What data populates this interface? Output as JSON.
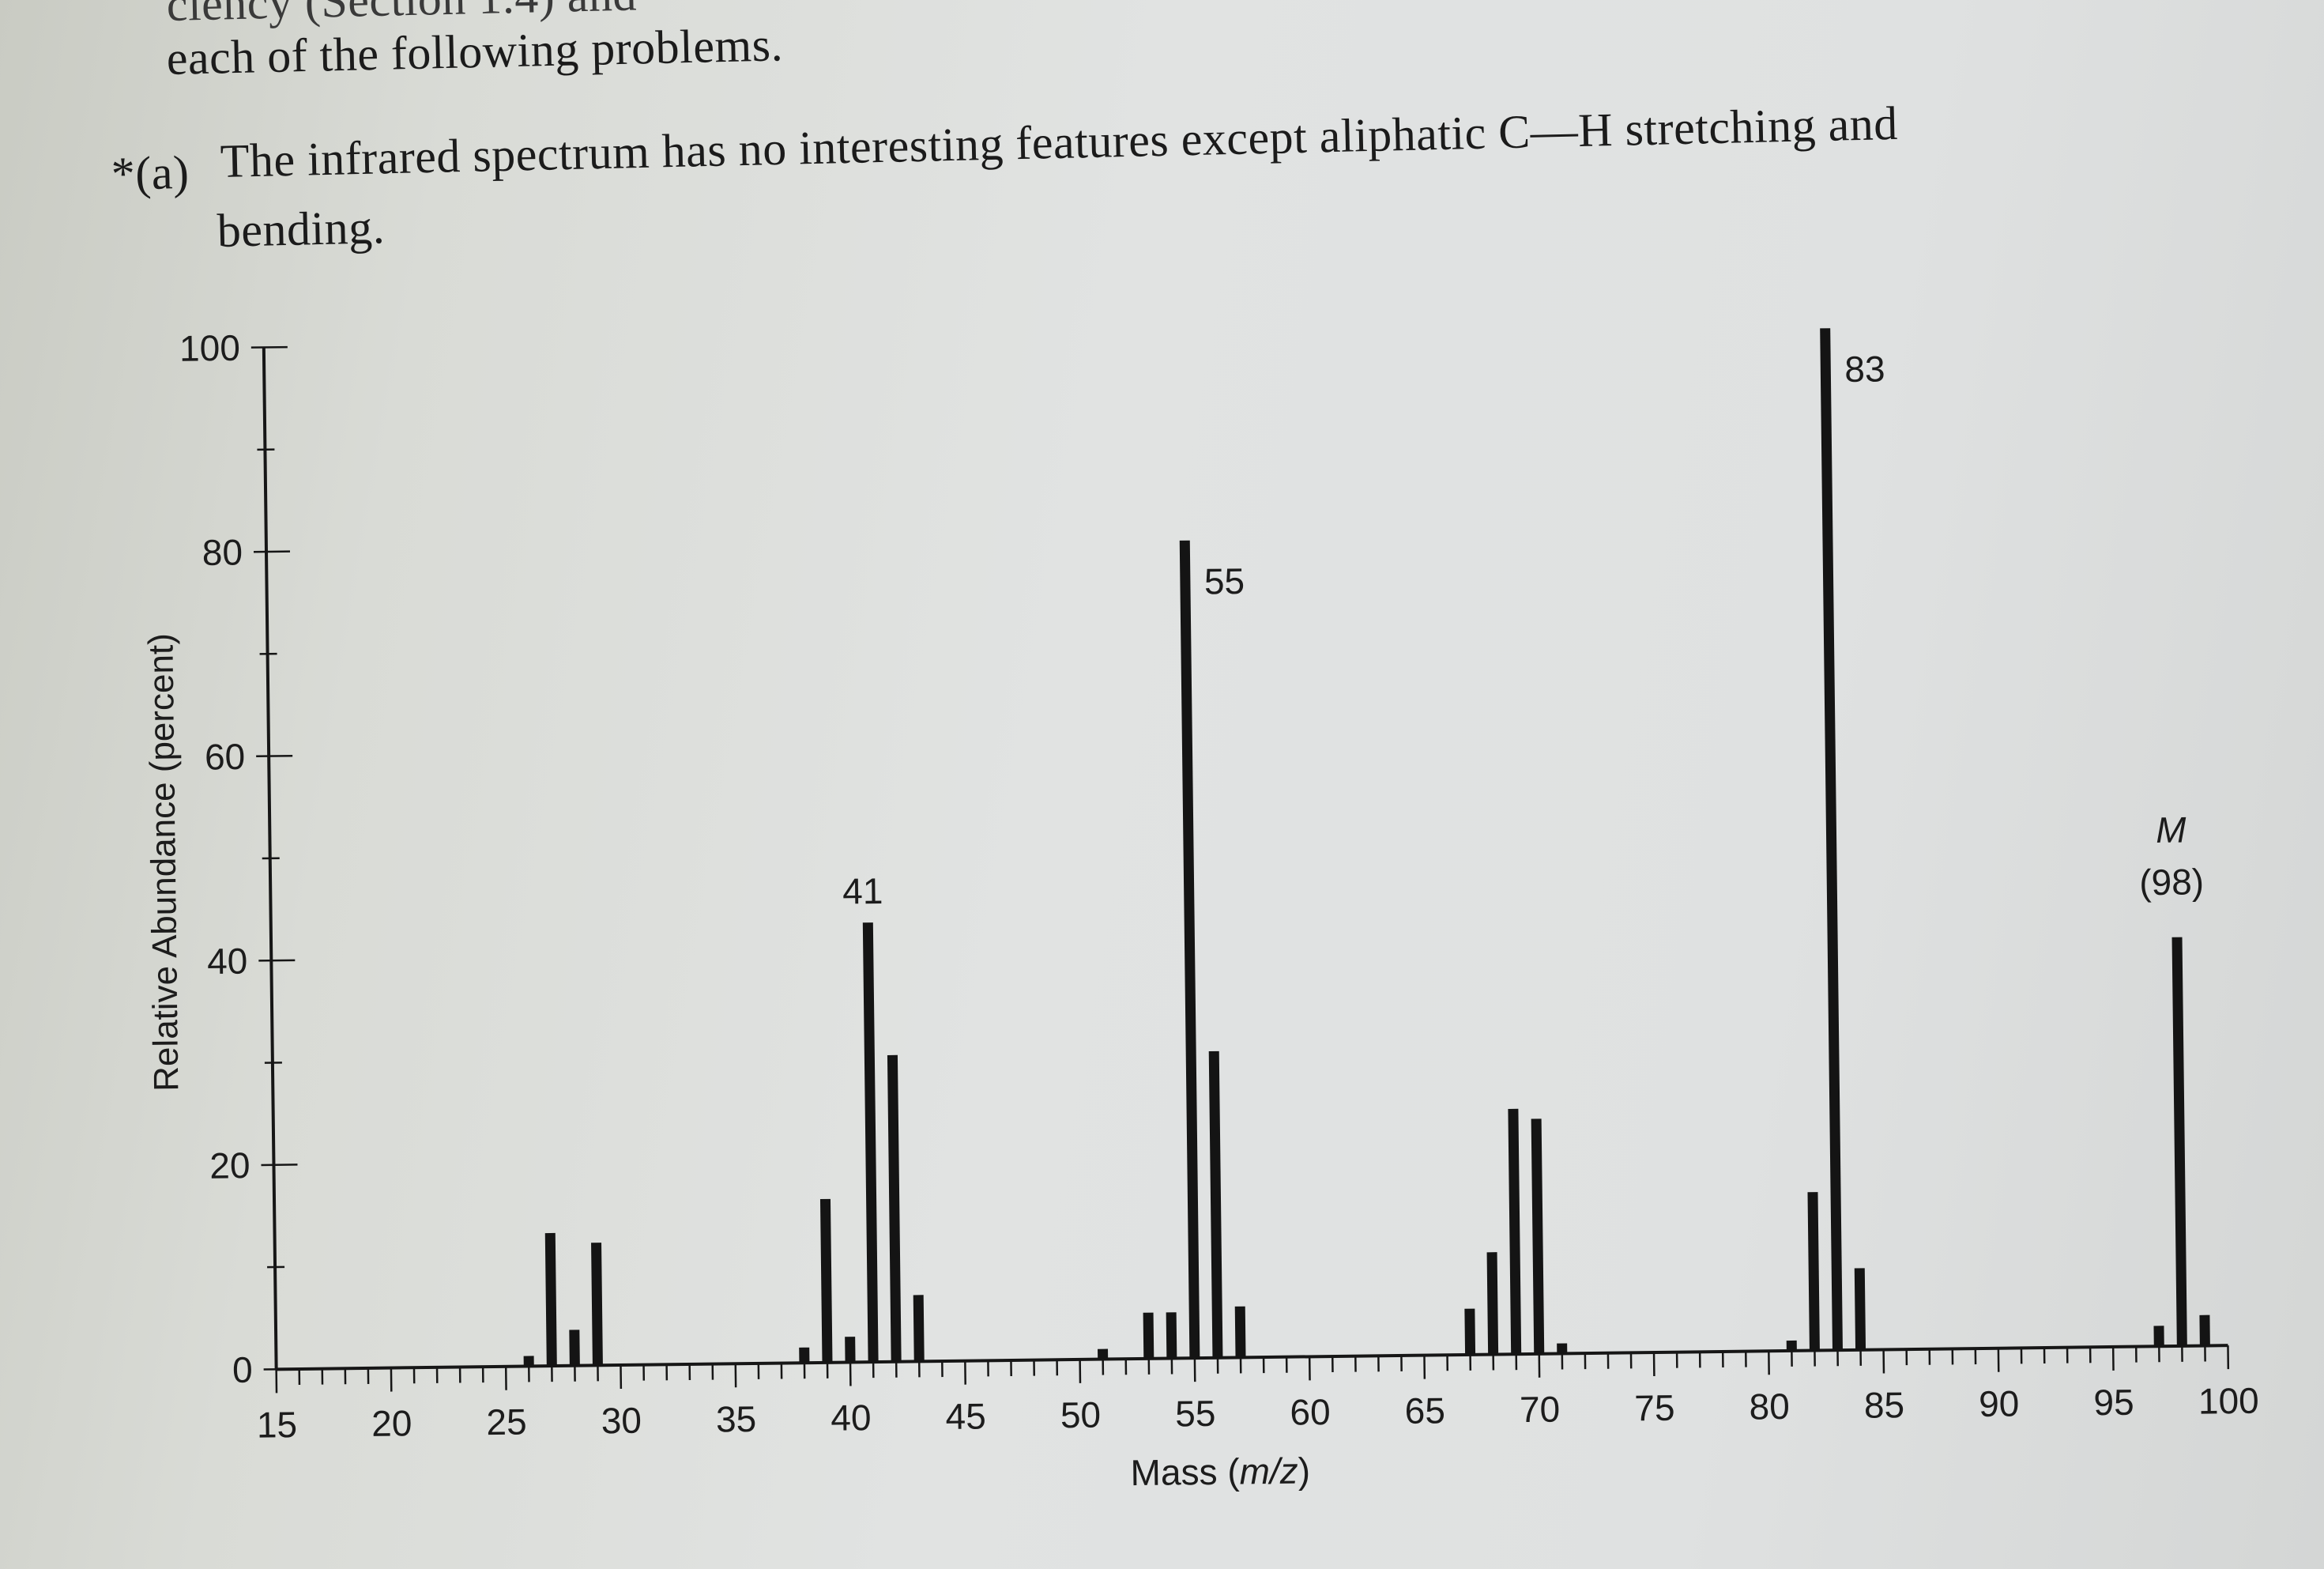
{
  "page": {
    "clipped_line": "ciency (Section 1.4) and",
    "intro": "each of the following problems.",
    "item_marker": "*(a)",
    "problem_line1": "The infrared spectrum has no interesting features except aliphatic C—H stretching and",
    "problem_line2": "bending."
  },
  "chart_data": {
    "type": "bar",
    "title": "",
    "xlabel": "Mass (m/z)",
    "ylabel": "Relative Abundance (percent)",
    "xlim": [
      15,
      100
    ],
    "ylim": [
      0,
      100
    ],
    "x_ticks": [
      15,
      20,
      25,
      30,
      35,
      40,
      45,
      50,
      55,
      60,
      65,
      70,
      75,
      80,
      85,
      90,
      95,
      100
    ],
    "y_ticks": [
      0,
      20,
      40,
      60,
      80,
      100
    ],
    "grid": false,
    "bar_color": "#141414",
    "peaks": [
      {
        "x": 26,
        "y": 1
      },
      {
        "x": 27,
        "y": 13
      },
      {
        "x": 28,
        "y": 3.5
      },
      {
        "x": 29,
        "y": 12
      },
      {
        "x": 38,
        "y": 1.5
      },
      {
        "x": 39,
        "y": 16
      },
      {
        "x": 40,
        "y": 2.5
      },
      {
        "x": 41,
        "y": 43
      },
      {
        "x": 42,
        "y": 30
      },
      {
        "x": 43,
        "y": 6.5
      },
      {
        "x": 51,
        "y": 1
      },
      {
        "x": 53,
        "y": 4.5
      },
      {
        "x": 54,
        "y": 4.5
      },
      {
        "x": 55,
        "y": 80
      },
      {
        "x": 56,
        "y": 30
      },
      {
        "x": 57,
        "y": 5
      },
      {
        "x": 67,
        "y": 4.5
      },
      {
        "x": 68,
        "y": 10
      },
      {
        "x": 69,
        "y": 24
      },
      {
        "x": 70,
        "y": 23
      },
      {
        "x": 71,
        "y": 1
      },
      {
        "x": 81,
        "y": 1
      },
      {
        "x": 82,
        "y": 15.5
      },
      {
        "x": 83,
        "y": 100
      },
      {
        "x": 84,
        "y": 8
      },
      {
        "x": 97,
        "y": 2
      },
      {
        "x": 98,
        "y": 40
      },
      {
        "x": 99,
        "y": 3
      }
    ],
    "annotations": [
      {
        "x": 41,
        "lines": [
          "41"
        ]
      },
      {
        "x": 55,
        "lines": [
          "55"
        ]
      },
      {
        "x": 83,
        "lines": [
          "83"
        ]
      },
      {
        "x": 98,
        "lines": [
          "M",
          "(98)"
        ]
      }
    ]
  }
}
